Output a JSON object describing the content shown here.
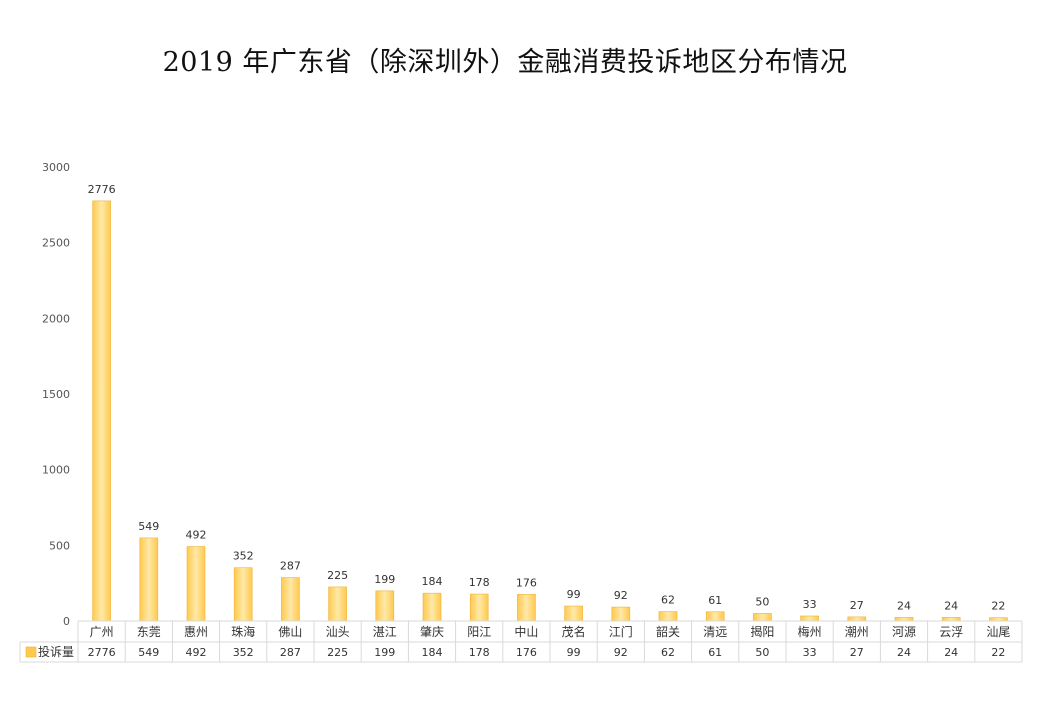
{
  "chart_data": {
    "type": "bar",
    "title": "2019 年广东省（除深圳外）金融消费投诉地区分布情况",
    "categories": [
      "广州",
      "东莞",
      "惠州",
      "珠海",
      "佛山",
      "汕头",
      "湛江",
      "肇庆",
      "阳江",
      "中山",
      "茂名",
      "江门",
      "韶关",
      "清远",
      "揭阳",
      "梅州",
      "潮州",
      "河源",
      "云浮",
      "汕尾"
    ],
    "series": [
      {
        "name": "投诉量",
        "values": [
          2776,
          549,
          492,
          352,
          287,
          225,
          199,
          184,
          178,
          176,
          99,
          92,
          62,
          61,
          50,
          33,
          27,
          24,
          24,
          22
        ]
      }
    ],
    "yticks": [
      0,
      500,
      1000,
      1500,
      2000,
      2500,
      3000
    ],
    "ylim": [
      0,
      3000
    ],
    "data_table": true,
    "grid": false,
    "colors": {
      "bar_fill": "#FFC94D",
      "bar_highlight": "#FFE9A8",
      "bar_edge": "#F0B23C",
      "table_border": "#D9D9D9",
      "text": "#333333",
      "tick_text": "#555555"
    }
  }
}
